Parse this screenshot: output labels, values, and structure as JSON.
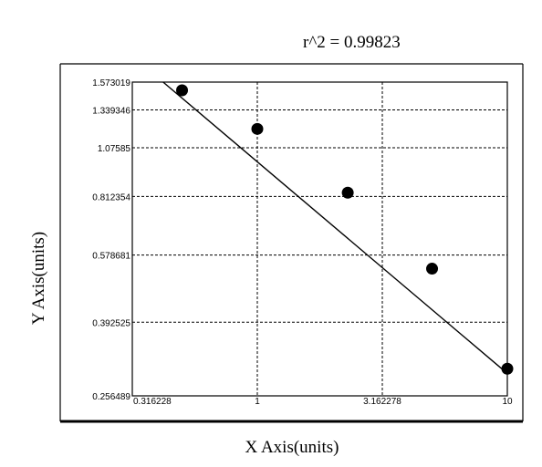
{
  "chart_data": {
    "type": "scatter",
    "annotation": "r^2  =  0.99823",
    "xlabel": "X Axis(units)",
    "ylabel": "Y Axis(units)",
    "xscale": "log",
    "yscale": "log",
    "xlim": [
      0.316228,
      10
    ],
    "ylim": [
      0.256489,
      1.573019
    ],
    "x_ticks": [
      "0.316228",
      "1",
      "3.162278",
      "10"
    ],
    "y_ticks": [
      "1.573019",
      "1.339346",
      "1.07585",
      "0.812354",
      "0.578681",
      "0.392525",
      "0.256489"
    ],
    "grid": true,
    "series": [
      {
        "points": [
          {
            "x": 0.5,
            "y": 1.5
          },
          {
            "x": 1.0,
            "y": 1.2
          },
          {
            "x": 2.3,
            "y": 0.83
          },
          {
            "x": 5.0,
            "y": 0.535
          },
          {
            "x": 10.0,
            "y": 0.3
          }
        ],
        "fit_line": [
          {
            "x": 0.42,
            "y": 1.573019
          },
          {
            "x": 10.0,
            "y": 0.292
          }
        ]
      }
    ],
    "colors": {
      "points": "#000000",
      "line": "#000000",
      "grid": "#000000"
    }
  }
}
